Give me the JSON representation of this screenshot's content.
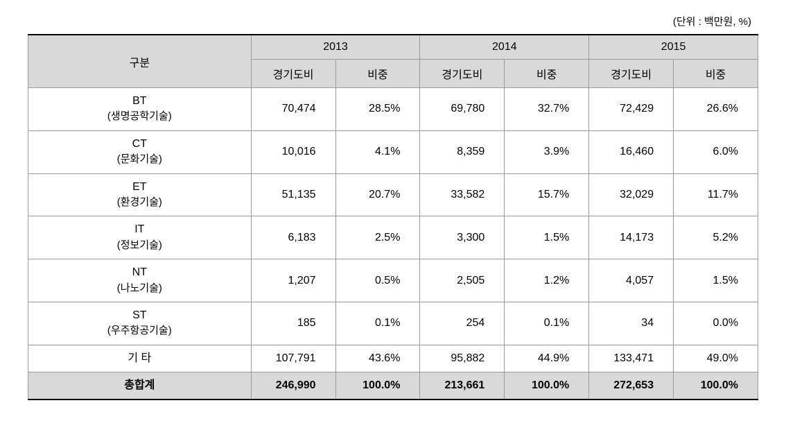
{
  "unit_label": "(단위 : 백만원, %)",
  "header": {
    "category": "구분",
    "years": [
      "2013",
      "2014",
      "2015"
    ],
    "subheaders": [
      "경기도비",
      "비중"
    ]
  },
  "rows": [
    {
      "cat_main": "BT",
      "cat_sub": "(생명공학기술)",
      "v2013": "70,474",
      "p2013": "28.5%",
      "v2014": "69,780",
      "p2014": "32.7%",
      "v2015": "72,429",
      "p2015": "26.6%"
    },
    {
      "cat_main": "CT",
      "cat_sub": "(문화기술)",
      "v2013": "10,016",
      "p2013": "4.1%",
      "v2014": "8,359",
      "p2014": "3.9%",
      "v2015": "16,460",
      "p2015": "6.0%"
    },
    {
      "cat_main": "ET",
      "cat_sub": "(환경기술)",
      "v2013": "51,135",
      "p2013": "20.7%",
      "v2014": "33,582",
      "p2014": "15.7%",
      "v2015": "32,029",
      "p2015": "11.7%"
    },
    {
      "cat_main": "IT",
      "cat_sub": "(정보기술)",
      "v2013": "6,183",
      "p2013": "2.5%",
      "v2014": "3,300",
      "p2014": "1.5%",
      "v2015": "14,173",
      "p2015": "5.2%"
    },
    {
      "cat_main": "NT",
      "cat_sub": "(나노기술)",
      "v2013": "1,207",
      "p2013": "0.5%",
      "v2014": "2,505",
      "p2014": "1.2%",
      "v2015": "4,057",
      "p2015": "1.5%"
    },
    {
      "cat_main": "ST",
      "cat_sub": "(우주항공기술)",
      "v2013": "185",
      "p2013": "0.1%",
      "v2014": "254",
      "p2014": "0.1%",
      "v2015": "34",
      "p2015": "0.0%"
    },
    {
      "cat_main": "기 타",
      "cat_sub": "",
      "v2013": "107,791",
      "p2013": "43.6%",
      "v2014": "95,882",
      "p2014": "44.9%",
      "v2015": "133,471",
      "p2015": "49.0%"
    }
  ],
  "total": {
    "label": "총합계",
    "v2013": "246,990",
    "p2013": "100.0%",
    "v2014": "213,661",
    "p2014": "100.0%",
    "v2015": "272,653",
    "p2015": "100.0%"
  },
  "styling": {
    "header_bg": "#d9d9d9",
    "total_bg": "#d9d9d9",
    "border_color": "#999999",
    "heavy_border_color": "#000000",
    "background_color": "#ffffff",
    "text_color": "#000000",
    "font_family": "Malgun Gothic",
    "font_size_body": 16,
    "font_size_unit": 15,
    "font_size_sub": 15,
    "column_widths": {
      "category": 190,
      "value": 144
    }
  }
}
